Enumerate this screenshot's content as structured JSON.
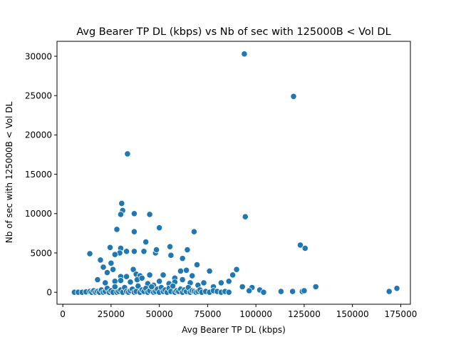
{
  "chart_data": {
    "type": "scatter",
    "title": "Avg Bearer TP DL (kbps) vs Nb of sec with 125000B < Vol DL",
    "xlabel": "Avg Bearer TP DL (kbps)",
    "ylabel": "Nb of sec with 125000B < Vol DL",
    "xlim": [
      -3000,
      180000
    ],
    "ylim": [
      -1520,
      31900
    ],
    "xticks": [
      0,
      25000,
      50000,
      75000,
      100000,
      125000,
      150000,
      175000
    ],
    "yticks": [
      0,
      5000,
      10000,
      15000,
      20000,
      25000,
      30000
    ],
    "xtick_labels": [
      "0",
      "25000",
      "50000",
      "75000",
      "100000",
      "125000",
      "150000",
      "175000"
    ],
    "ytick_labels": [
      "0",
      "5000",
      "10000",
      "15000",
      "20000",
      "25000",
      "30000"
    ],
    "grid": false,
    "marker_color": "#1f77b4",
    "points": [
      [
        94000,
        30300
      ],
      [
        119500,
        24900
      ],
      [
        33500,
        17600
      ],
      [
        30500,
        11300
      ],
      [
        31000,
        10400
      ],
      [
        30000,
        9900
      ],
      [
        37000,
        10000
      ],
      [
        45000,
        9900
      ],
      [
        94500,
        9600
      ],
      [
        28000,
        8000
      ],
      [
        37000,
        7700
      ],
      [
        68000,
        7700
      ],
      [
        50000,
        8200
      ],
      [
        43000,
        6400
      ],
      [
        24500,
        5700
      ],
      [
        30000,
        5600
      ],
      [
        55500,
        5800
      ],
      [
        14000,
        4900
      ],
      [
        29500,
        5000
      ],
      [
        33000,
        5200
      ],
      [
        37000,
        5200
      ],
      [
        42000,
        5200
      ],
      [
        48000,
        5000
      ],
      [
        48500,
        5400
      ],
      [
        56000,
        4700
      ],
      [
        64500,
        5400
      ],
      [
        123000,
        6000
      ],
      [
        125500,
        5600
      ],
      [
        27000,
        4800
      ],
      [
        19500,
        4100
      ],
      [
        25000,
        3700
      ],
      [
        21000,
        3200
      ],
      [
        36500,
        2900
      ],
      [
        23000,
        2500
      ],
      [
        26000,
        2900
      ],
      [
        30000,
        2000
      ],
      [
        33000,
        2000
      ],
      [
        38000,
        2300
      ],
      [
        40000,
        2100
      ],
      [
        45000,
        2200
      ],
      [
        52000,
        2200
      ],
      [
        58000,
        1800
      ],
      [
        61000,
        2700
      ],
      [
        64000,
        2800
      ],
      [
        67000,
        2100
      ],
      [
        69500,
        3500
      ],
      [
        76000,
        2700
      ],
      [
        88000,
        2200
      ],
      [
        90000,
        2900
      ],
      [
        62000,
        4300
      ],
      [
        18000,
        1600
      ],
      [
        22000,
        1200
      ],
      [
        27000,
        1400
      ],
      [
        30000,
        1500
      ],
      [
        35000,
        1300
      ],
      [
        38500,
        1600
      ],
      [
        41000,
        1800
      ],
      [
        44000,
        1100
      ],
      [
        47000,
        900
      ],
      [
        50000,
        1400
      ],
      [
        55000,
        1100
      ],
      [
        58000,
        1300
      ],
      [
        62000,
        1600
      ],
      [
        66000,
        1200
      ],
      [
        70000,
        900
      ],
      [
        73000,
        1200
      ],
      [
        78000,
        700
      ],
      [
        82000,
        1200
      ],
      [
        86000,
        1400
      ],
      [
        93000,
        700
      ],
      [
        98000,
        600
      ],
      [
        131000,
        700
      ],
      [
        173000,
        500
      ],
      [
        96500,
        200
      ],
      [
        102000,
        300
      ],
      [
        104000,
        0
      ],
      [
        113000,
        100
      ],
      [
        119000,
        100
      ],
      [
        124000,
        100
      ],
      [
        125000,
        200
      ],
      [
        169000,
        100
      ],
      [
        6000,
        0
      ],
      [
        8000,
        0
      ],
      [
        10000,
        0
      ],
      [
        12000,
        50
      ],
      [
        14000,
        100
      ],
      [
        15000,
        0
      ],
      [
        16000,
        200
      ],
      [
        17000,
        0
      ],
      [
        18000,
        100
      ],
      [
        19000,
        0
      ],
      [
        20000,
        300
      ],
      [
        21000,
        0
      ],
      [
        22000,
        100
      ],
      [
        23000,
        500
      ],
      [
        24000,
        0
      ],
      [
        25000,
        200
      ],
      [
        26000,
        0
      ],
      [
        27000,
        700
      ],
      [
        28000,
        0
      ],
      [
        29000,
        100
      ],
      [
        30000,
        300
      ],
      [
        31000,
        0
      ],
      [
        32000,
        600
      ],
      [
        33000,
        100
      ],
      [
        34000,
        0
      ],
      [
        35000,
        200
      ],
      [
        36000,
        400
      ],
      [
        37000,
        0
      ],
      [
        38000,
        100
      ],
      [
        39000,
        800
      ],
      [
        40000,
        0
      ],
      [
        41000,
        300
      ],
      [
        42000,
        100
      ],
      [
        43000,
        500
      ],
      [
        44000,
        0
      ],
      [
        45000,
        200
      ],
      [
        46000,
        700
      ],
      [
        47000,
        0
      ],
      [
        48000,
        100
      ],
      [
        49000,
        400
      ],
      [
        50000,
        0
      ],
      [
        51000,
        600
      ],
      [
        52000,
        100
      ],
      [
        53000,
        300
      ],
      [
        54000,
        0
      ],
      [
        55000,
        500
      ],
      [
        56000,
        100
      ],
      [
        57000,
        800
      ],
      [
        58000,
        0
      ],
      [
        59000,
        200
      ],
      [
        60000,
        100
      ],
      [
        61000,
        400
      ],
      [
        62000,
        0
      ],
      [
        63000,
        300
      ],
      [
        64000,
        100
      ],
      [
        65000,
        600
      ],
      [
        66000,
        0
      ],
      [
        67000,
        200
      ],
      [
        68000,
        100
      ],
      [
        69000,
        0
      ],
      [
        70000,
        100
      ],
      [
        71000,
        300
      ],
      [
        72000,
        0
      ],
      [
        74000,
        100
      ],
      [
        76000,
        0
      ],
      [
        78000,
        200
      ],
      [
        80000,
        100
      ],
      [
        82000,
        0
      ],
      [
        84000,
        100
      ],
      [
        86000,
        0
      ]
    ]
  }
}
